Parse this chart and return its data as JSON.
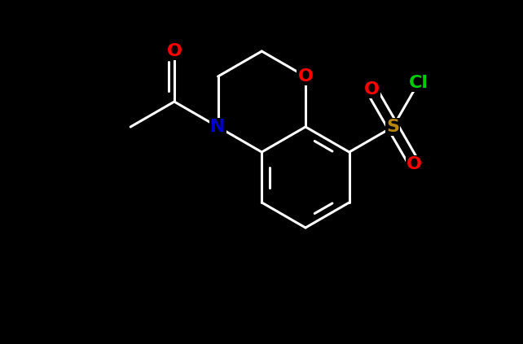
{
  "background_color": "#000000",
  "bond_color": "#ffffff",
  "atom_colors": {
    "O": "#ff0000",
    "N": "#0000cc",
    "S": "#b8860b",
    "Cl": "#00cc00",
    "C": "#ffffff"
  },
  "figsize": [
    6.42,
    4.23
  ],
  "dpi": 100,
  "bond_lw": 2.2,
  "font_size": 16
}
